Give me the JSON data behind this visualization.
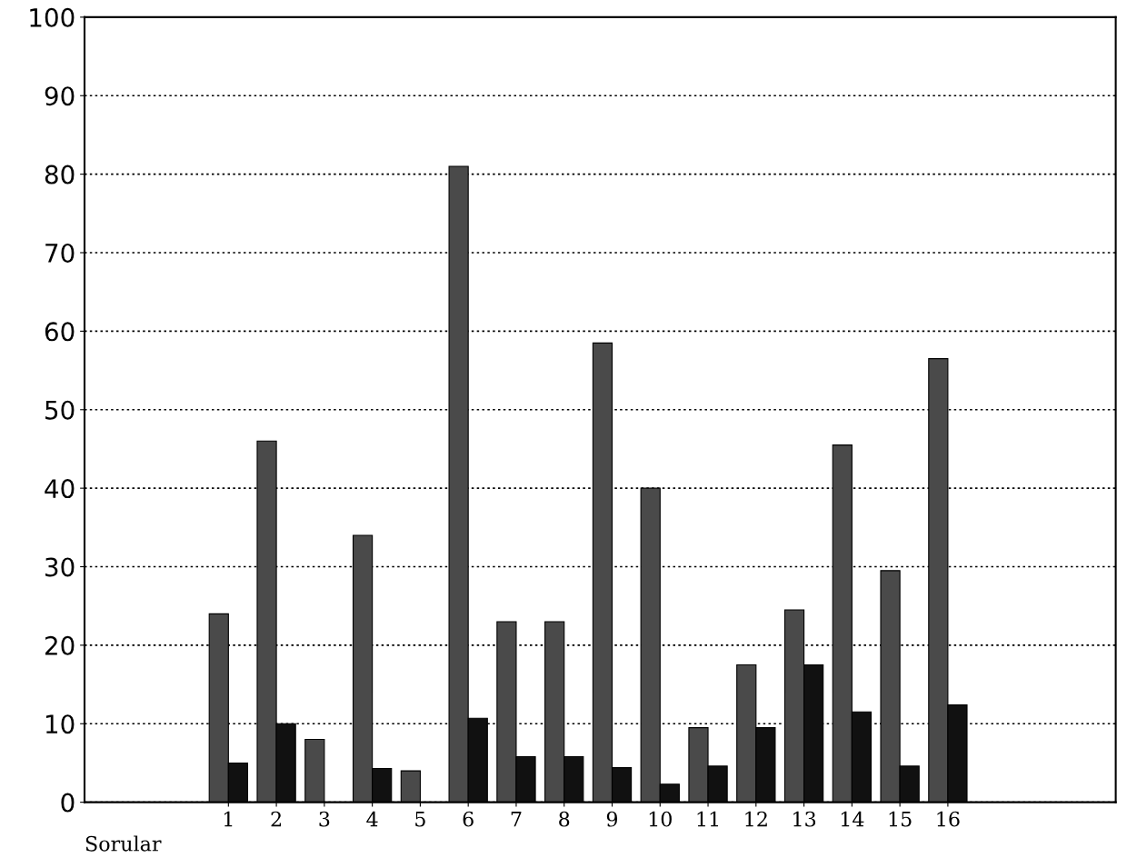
{
  "chart_data": {
    "type": "bar",
    "xlabel": "Sorular",
    "categories": [
      "1",
      "2",
      "3",
      "4",
      "5",
      "6",
      "7",
      "8",
      "9",
      "10",
      "11",
      "12",
      "13",
      "14",
      "15",
      "16"
    ],
    "series": [
      {
        "color": "#4a4a4a",
        "values": [
          24,
          46,
          8,
          34,
          4,
          81,
          23,
          23,
          58.5,
          40,
          9.5,
          17.5,
          24.5,
          45.5,
          29.5,
          56.5
        ]
      },
      {
        "color": "#111111",
        "values": [
          5,
          10,
          null,
          4.3,
          null,
          10.7,
          5.8,
          5.8,
          4.4,
          2.3,
          4.6,
          9.5,
          17.5,
          11.5,
          4.6,
          12.4
        ]
      }
    ],
    "ylim": [
      0,
      100
    ],
    "yticks": [
      0,
      10,
      20,
      30,
      40,
      50,
      60,
      70,
      80,
      90,
      100
    ],
    "grid": "y"
  }
}
